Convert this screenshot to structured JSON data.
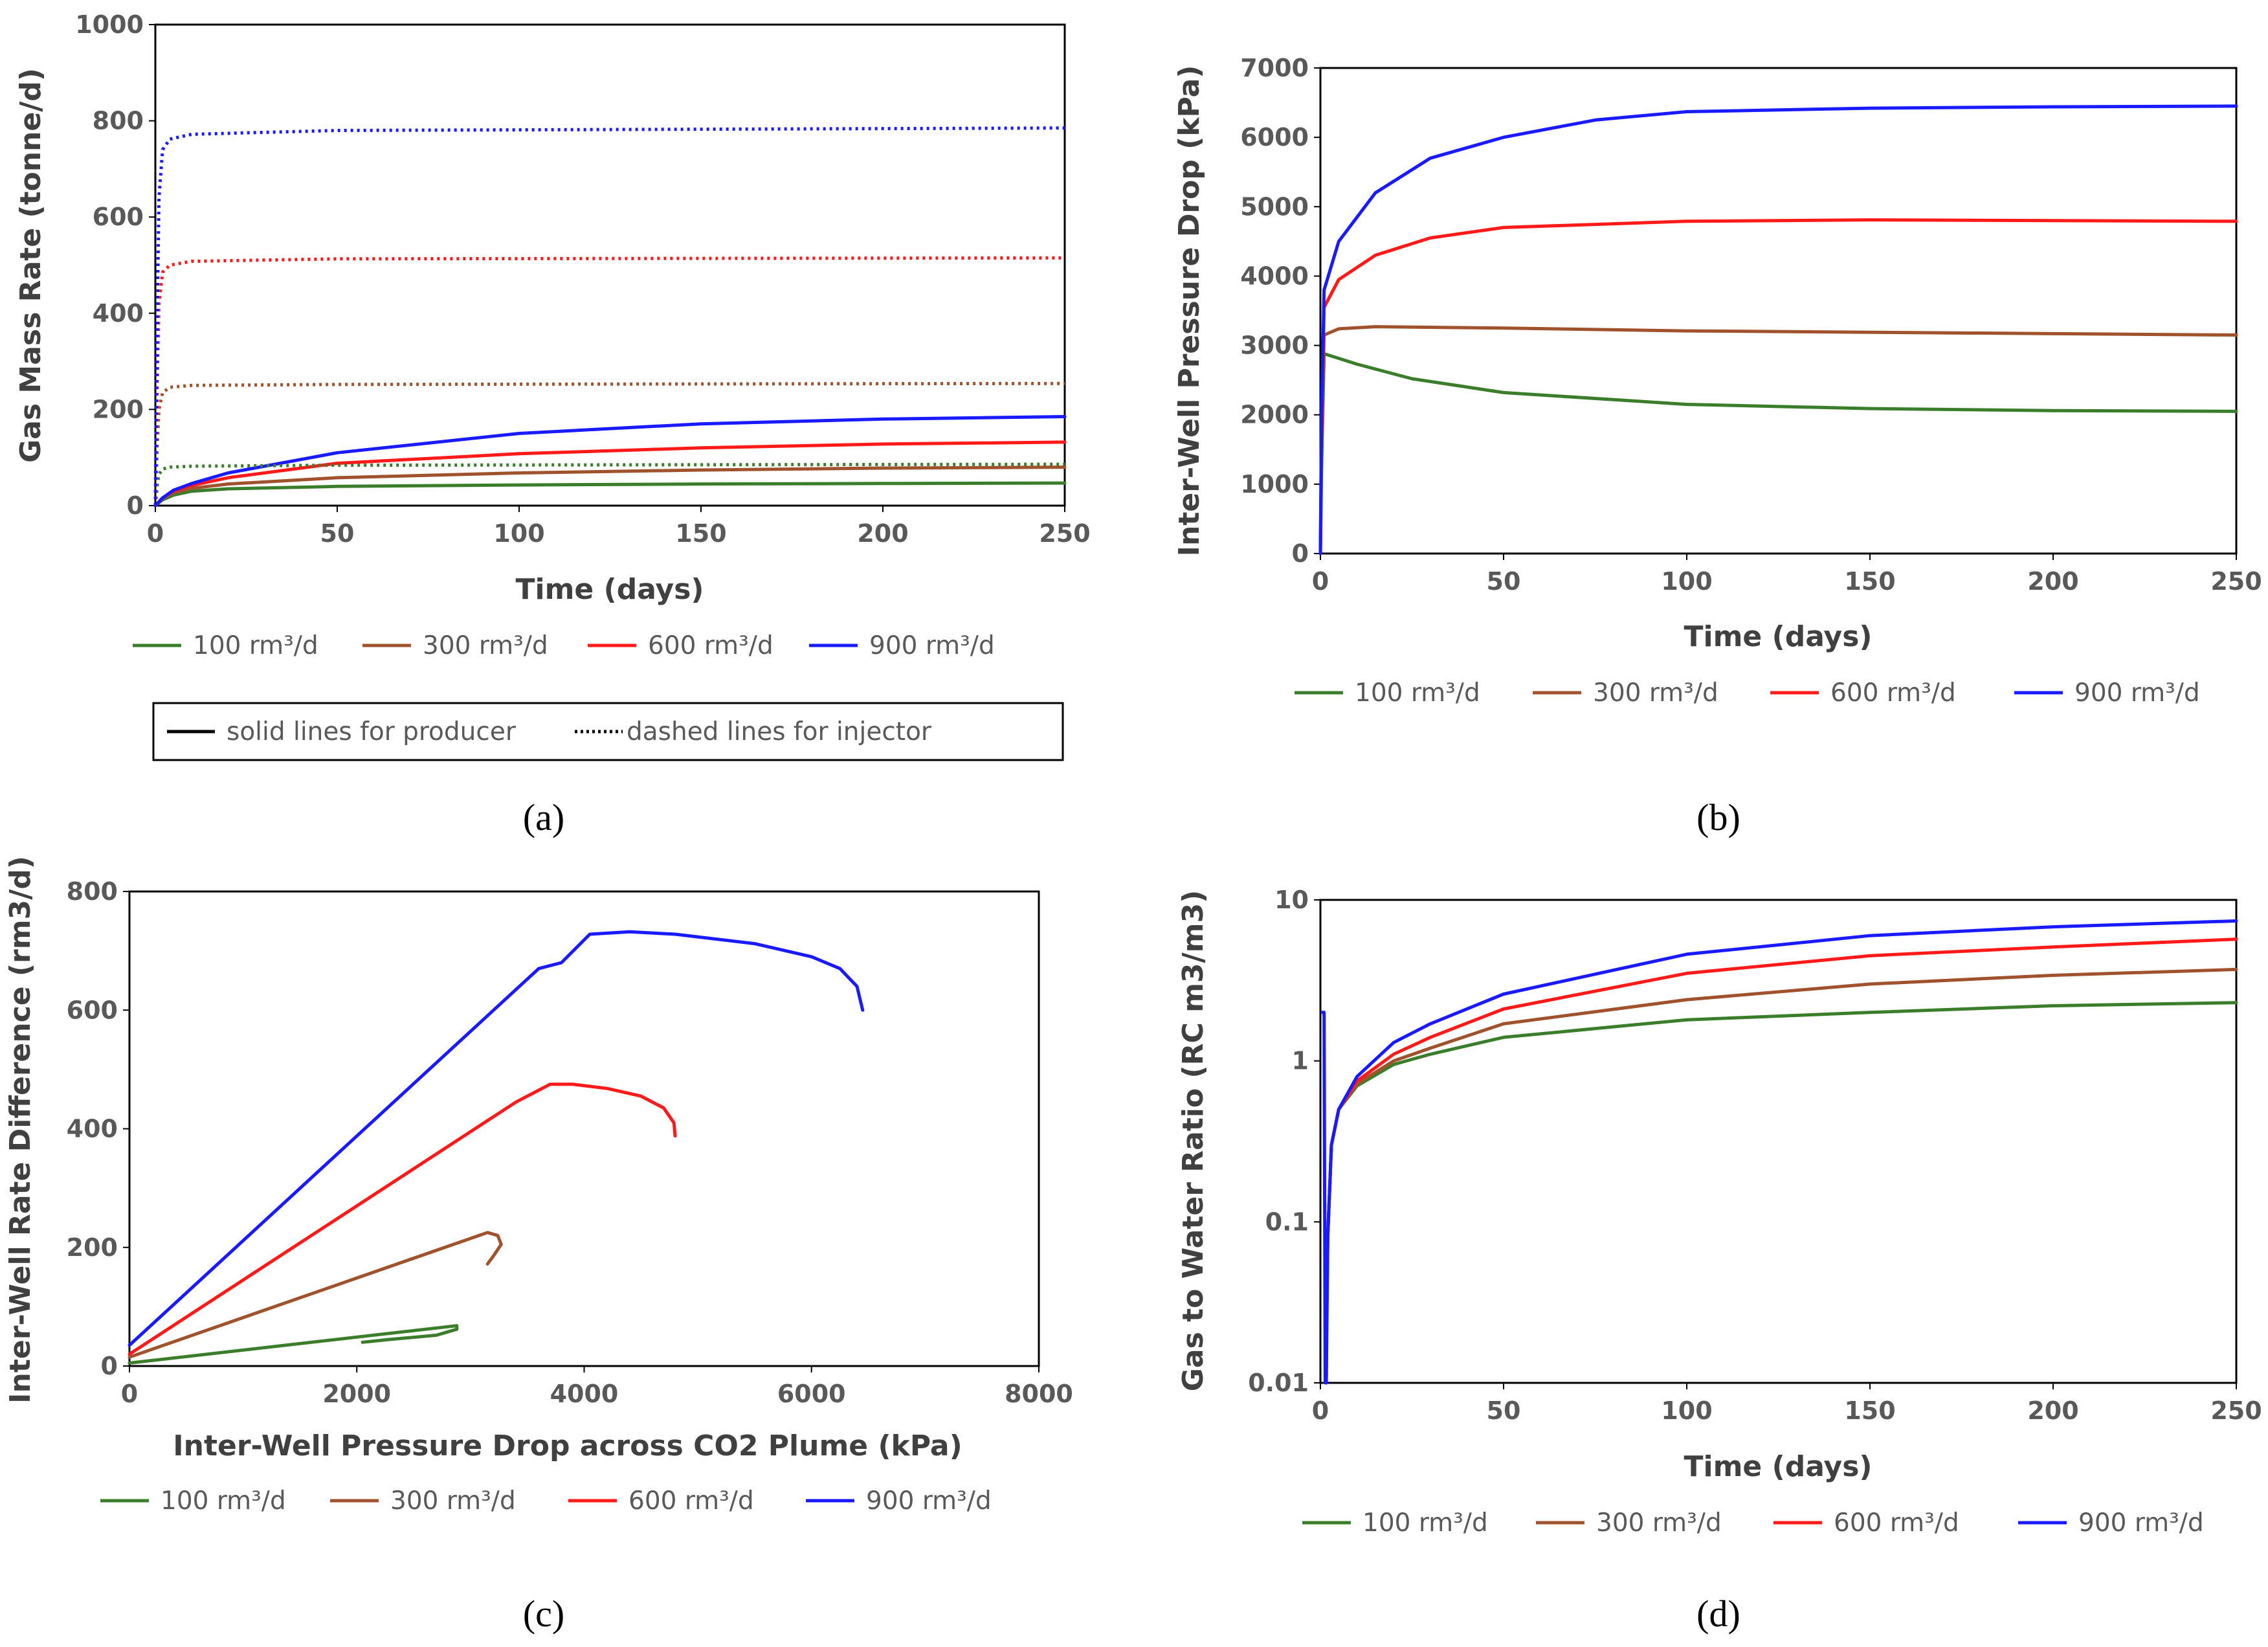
{
  "colors": {
    "100": "#3a7d2a",
    "300": "#a0522d",
    "600": "#ff1a1a",
    "900": "#1a1aff",
    "text": "#595959"
  },
  "legend_labels": [
    "100 rm³/d",
    "300 rm³/d",
    "600 rm³/d",
    "900 rm³/d"
  ],
  "chart_data": [
    {
      "id": "a",
      "type": "line",
      "caption": "(a)",
      "xlabel": "Time (days)",
      "ylabel": "Gas Mass Rate (tonne/d)",
      "xlim": [
        0,
        250
      ],
      "ylim": [
        0,
        1000
      ],
      "xticks": [
        0,
        50,
        100,
        150,
        200,
        250
      ],
      "yticks": [
        0,
        200,
        400,
        600,
        800,
        1000
      ],
      "style_note": {
        "solid": "solid lines for producer",
        "dotted": "dashed lines for injector"
      },
      "series": [
        {
          "name": "100 rm³/d",
          "role": "producer",
          "x": [
            0,
            2,
            5,
            10,
            20,
            50,
            100,
            150,
            200,
            250
          ],
          "y": [
            0,
            12,
            22,
            30,
            35,
            40,
            43,
            45,
            46,
            47
          ]
        },
        {
          "name": "300 rm³/d",
          "role": "producer",
          "x": [
            0,
            2,
            5,
            10,
            20,
            50,
            100,
            150,
            200,
            250
          ],
          "y": [
            0,
            15,
            27,
            36,
            45,
            58,
            68,
            74,
            78,
            80
          ]
        },
        {
          "name": "600 rm³/d",
          "role": "producer",
          "x": [
            0,
            2,
            5,
            10,
            20,
            50,
            100,
            150,
            200,
            250
          ],
          "y": [
            0,
            16,
            30,
            42,
            58,
            88,
            108,
            120,
            128,
            132
          ]
        },
        {
          "name": "900 rm³/d",
          "role": "producer",
          "x": [
            0,
            2,
            5,
            10,
            20,
            50,
            100,
            150,
            200,
            250
          ],
          "y": [
            0,
            16,
            32,
            46,
            68,
            110,
            150,
            170,
            180,
            185
          ]
        },
        {
          "name": "100 rm³/d",
          "role": "injector",
          "x": [
            0,
            0.5,
            1,
            2,
            4,
            10,
            50,
            250
          ],
          "y": [
            0,
            40,
            65,
            76,
            80,
            82,
            84,
            86
          ]
        },
        {
          "name": "300 rm³/d",
          "role": "injector",
          "x": [
            0,
            0.5,
            1,
            2,
            4,
            10,
            50,
            250
          ],
          "y": [
            0,
            120,
            200,
            235,
            246,
            250,
            252,
            254
          ]
        },
        {
          "name": "600 rm³/d",
          "role": "injector",
          "x": [
            0,
            0.5,
            1,
            2,
            4,
            10,
            50,
            250
          ],
          "y": [
            0,
            250,
            420,
            485,
            500,
            508,
            513,
            515
          ]
        },
        {
          "name": "900 rm³/d",
          "role": "injector",
          "x": [
            0,
            0.5,
            1,
            2,
            4,
            10,
            50,
            250
          ],
          "y": [
            0,
            380,
            640,
            740,
            762,
            772,
            780,
            785
          ]
        }
      ]
    },
    {
      "id": "b",
      "type": "line",
      "caption": "(b)",
      "xlabel": "Time (days)",
      "ylabel": "Inter-Well Pressure Drop (kPa)",
      "xlim": [
        0,
        250
      ],
      "ylim": [
        0,
        7000
      ],
      "xticks": [
        0,
        50,
        100,
        150,
        200,
        250
      ],
      "yticks": [
        0,
        1000,
        2000,
        3000,
        4000,
        5000,
        6000,
        7000
      ],
      "series": [
        {
          "name": "100 rm³/d",
          "x": [
            0,
            0.3,
            1,
            10,
            25,
            50,
            100,
            150,
            200,
            250
          ],
          "y": [
            0,
            1200,
            2880,
            2730,
            2520,
            2320,
            2150,
            2090,
            2060,
            2050
          ]
        },
        {
          "name": "300 rm³/d",
          "x": [
            0,
            0.3,
            1,
            5,
            15,
            50,
            100,
            150,
            200,
            250
          ],
          "y": [
            0,
            1600,
            3150,
            3240,
            3270,
            3250,
            3210,
            3190,
            3170,
            3150
          ]
        },
        {
          "name": "600 rm³/d",
          "x": [
            0,
            0.3,
            1,
            5,
            15,
            30,
            50,
            100,
            150,
            200,
            250
          ],
          "y": [
            0,
            1800,
            3550,
            3950,
            4300,
            4550,
            4700,
            4790,
            4810,
            4800,
            4790
          ]
        },
        {
          "name": "900 rm³/d",
          "x": [
            0,
            0.3,
            1,
            5,
            15,
            30,
            50,
            75,
            100,
            150,
            200,
            250
          ],
          "y": [
            0,
            2000,
            3800,
            4500,
            5200,
            5700,
            6000,
            6250,
            6370,
            6420,
            6440,
            6450
          ]
        }
      ]
    },
    {
      "id": "c",
      "type": "line",
      "caption": "(c)",
      "xlabel": "Inter-Well Pressure Drop across CO2 Plume (kPa)",
      "ylabel": "Inter-Well Rate Difference (rm3/d)",
      "xlim": [
        0,
        8000
      ],
      "ylim": [
        0,
        800
      ],
      "xticks": [
        0,
        2000,
        4000,
        6000,
        8000
      ],
      "yticks": [
        0,
        200,
        400,
        600,
        800
      ],
      "series": [
        {
          "name": "100 rm³/d",
          "x": [
            0,
            2880,
            2880,
            2700,
            2300,
            2050
          ],
          "y": [
            5,
            68,
            62,
            52,
            45,
            40
          ]
        },
        {
          "name": "300 rm³/d",
          "x": [
            0,
            3150,
            3240,
            3270,
            3200,
            3150
          ],
          "y": [
            15,
            225,
            220,
            205,
            185,
            172
          ]
        },
        {
          "name": "600 rm³/d",
          "x": [
            0,
            3400,
            3500,
            3700,
            3900,
            4200,
            4500,
            4700,
            4790,
            4800
          ],
          "y": [
            20,
            445,
            455,
            475,
            475,
            468,
            455,
            435,
            410,
            388
          ]
        },
        {
          "name": "900 rm³/d",
          "x": [
            0,
            3600,
            3800,
            4050,
            4400,
            4800,
            5500,
            6000,
            6250,
            6400,
            6450
          ],
          "y": [
            35,
            670,
            680,
            728,
            732,
            728,
            712,
            690,
            670,
            640,
            600
          ]
        }
      ]
    },
    {
      "id": "d",
      "type": "line",
      "caption": "(d)",
      "xlabel": "Time (days)",
      "ylabel": "Gas to Water Ratio (RC m3/m3)",
      "yscale": "log",
      "xlim": [
        0,
        250
      ],
      "ylim": [
        0.01,
        10
      ],
      "xticks": [
        0,
        50,
        100,
        150,
        200,
        250
      ],
      "ytick_labels": [
        "0.01",
        "0.1",
        "1",
        "10"
      ],
      "yticks": [
        0.01,
        0.1,
        1,
        10
      ],
      "series": [
        {
          "name": "100 rm³/d",
          "x": [
            1.5,
            2,
            3,
            5,
            10,
            20,
            30,
            50,
            100,
            150,
            200,
            250
          ],
          "y": [
            0.01,
            0.08,
            0.3,
            0.5,
            0.7,
            0.95,
            1.1,
            1.4,
            1.8,
            2.0,
            2.2,
            2.3
          ]
        },
        {
          "name": "300 rm³/d",
          "x": [
            1.5,
            2,
            3,
            5,
            10,
            20,
            30,
            50,
            100,
            150,
            200,
            250
          ],
          "y": [
            0.01,
            0.08,
            0.3,
            0.5,
            0.72,
            1.0,
            1.2,
            1.7,
            2.4,
            3.0,
            3.4,
            3.7
          ]
        },
        {
          "name": "600 rm³/d",
          "x": [
            1.5,
            2,
            3,
            5,
            10,
            20,
            30,
            50,
            100,
            150,
            200,
            250
          ],
          "y": [
            0.01,
            0.08,
            0.3,
            0.5,
            0.75,
            1.1,
            1.4,
            2.1,
            3.5,
            4.5,
            5.1,
            5.7
          ]
        },
        {
          "name": "900 rm³/d",
          "x": [
            0.5,
            1,
            1.3,
            1.6,
            2,
            3,
            5,
            10,
            20,
            30,
            50,
            100,
            150,
            200,
            250
          ],
          "y": [
            2.0,
            2.0,
            0.01,
            0.01,
            0.08,
            0.3,
            0.5,
            0.8,
            1.3,
            1.7,
            2.6,
            4.6,
            6.0,
            6.8,
            7.4
          ]
        }
      ]
    }
  ]
}
